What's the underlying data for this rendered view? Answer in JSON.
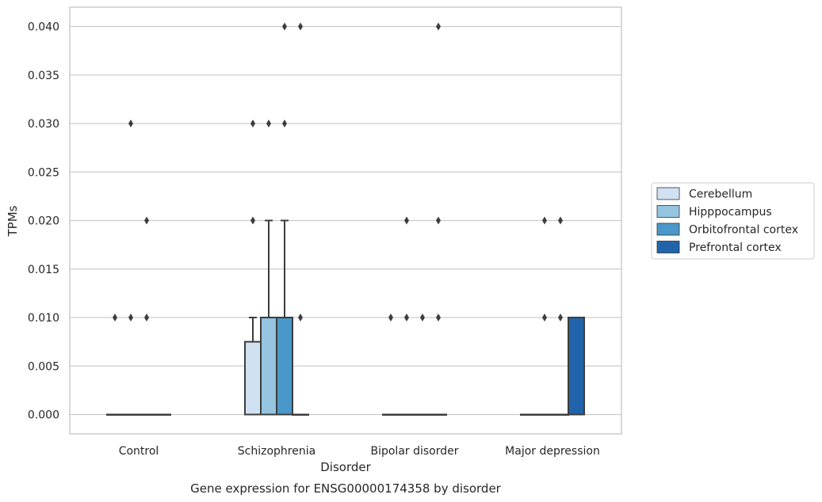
{
  "chart_data": {
    "type": "boxplot",
    "caption": "Gene expression for ENSG00000174358 by disorder",
    "xlabel": "Disorder",
    "ylabel": "TPMs",
    "ylim": [
      -0.002,
      0.042
    ],
    "yticks": [
      0.0,
      0.005,
      0.01,
      0.015,
      0.02,
      0.025,
      0.03,
      0.035,
      0.04
    ],
    "ytick_labels": [
      "0.000",
      "0.005",
      "0.010",
      "0.015",
      "0.020",
      "0.025",
      "0.030",
      "0.035",
      "0.040"
    ],
    "grid": "horizontal",
    "legend_placement": "right-outside",
    "categories": [
      "Control",
      "Schizophrenia",
      "Bipolar disorder",
      "Major depression"
    ],
    "series": [
      {
        "name": "Cerebellum",
        "color": "#d0e1f2",
        "boxes": [
          {
            "q1": 0,
            "median": 0,
            "q3": 0,
            "whisker_low": 0,
            "whisker_high": 0,
            "outliers": [
              0.01
            ]
          },
          {
            "q1": 0,
            "median": 0,
            "q3": 0.0075,
            "whisker_low": 0,
            "whisker_high": 0.01,
            "outliers": [
              0.02,
              0.03
            ]
          },
          {
            "q1": 0,
            "median": 0,
            "q3": 0,
            "whisker_low": 0,
            "whisker_high": 0,
            "outliers": [
              0.01
            ]
          },
          {
            "q1": 0,
            "median": 0,
            "q3": 0,
            "whisker_low": 0,
            "whisker_high": 0,
            "outliers": []
          }
        ]
      },
      {
        "name": "Hipppocampus",
        "color": "#94c4df",
        "boxes": [
          {
            "q1": 0,
            "median": 0,
            "q3": 0,
            "whisker_low": 0,
            "whisker_high": 0,
            "outliers": [
              0.01,
              0.03
            ]
          },
          {
            "q1": 0,
            "median": 0,
            "q3": 0.01,
            "whisker_low": 0,
            "whisker_high": 0.02,
            "outliers": [
              0.03
            ]
          },
          {
            "q1": 0,
            "median": 0,
            "q3": 0,
            "whisker_low": 0,
            "whisker_high": 0,
            "outliers": [
              0.01,
              0.02
            ]
          },
          {
            "q1": 0,
            "median": 0,
            "q3": 0,
            "whisker_low": 0,
            "whisker_high": 0,
            "outliers": [
              0.01,
              0.02
            ]
          }
        ]
      },
      {
        "name": "Orbitofrontal cortex",
        "color": "#4a98c9",
        "boxes": [
          {
            "q1": 0,
            "median": 0,
            "q3": 0,
            "whisker_low": 0,
            "whisker_high": 0,
            "outliers": [
              0.01,
              0.02
            ]
          },
          {
            "q1": 0,
            "median": 0,
            "q3": 0.01,
            "whisker_low": 0,
            "whisker_high": 0.02,
            "outliers": [
              0.03,
              0.04
            ]
          },
          {
            "q1": 0,
            "median": 0,
            "q3": 0,
            "whisker_low": 0,
            "whisker_high": 0,
            "outliers": [
              0.01
            ]
          },
          {
            "q1": 0,
            "median": 0,
            "q3": 0,
            "whisker_low": 0,
            "whisker_high": 0,
            "outliers": [
              0.01,
              0.02
            ]
          }
        ]
      },
      {
        "name": "Prefrontal cortex",
        "color": "#2164ab",
        "boxes": [
          {
            "q1": 0,
            "median": 0,
            "q3": 0,
            "whisker_low": 0,
            "whisker_high": 0,
            "outliers": []
          },
          {
            "q1": 0,
            "median": 0,
            "q3": 0,
            "whisker_low": 0,
            "whisker_high": 0,
            "outliers": [
              0.01,
              0.04
            ]
          },
          {
            "q1": 0,
            "median": 0,
            "q3": 0,
            "whisker_low": 0,
            "whisker_high": 0,
            "outliers": [
              0.01,
              0.02,
              0.04
            ]
          },
          {
            "q1": 0,
            "median": 0,
            "q3": 0.01,
            "whisker_low": 0,
            "whisker_high": 0.01,
            "outliers": []
          }
        ]
      }
    ]
  }
}
